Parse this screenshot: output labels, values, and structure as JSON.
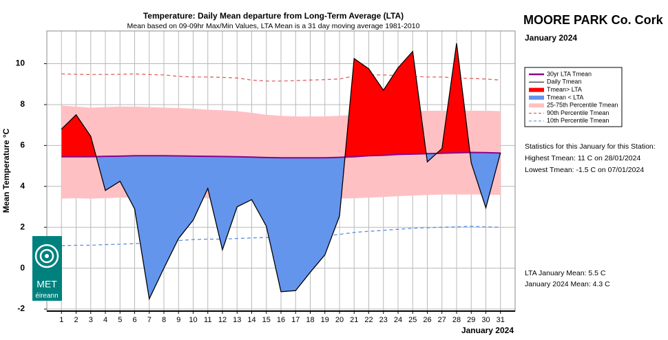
{
  "chart_data": {
    "type": "line",
    "title": "Temperature: Daily Mean departure from Long-Term Average (LTA)",
    "subtitle": "Mean based on 09-09hr Max/Min Values, LTA Mean is a 31 day moving average 1981-2010",
    "y_label": "Mean Temperature °C",
    "x_label": "January 2024",
    "x": [
      1,
      2,
      3,
      4,
      5,
      6,
      7,
      8,
      9,
      10,
      11,
      12,
      13,
      14,
      15,
      16,
      17,
      18,
      19,
      20,
      21,
      22,
      23,
      24,
      25,
      26,
      27,
      28,
      29,
      30,
      31
    ],
    "xlim": [
      0,
      32
    ],
    "xticks": [
      1,
      2,
      3,
      4,
      5,
      6,
      7,
      8,
      9,
      10,
      11,
      12,
      13,
      14,
      15,
      16,
      17,
      18,
      19,
      20,
      21,
      22,
      23,
      24,
      25,
      26,
      27,
      28,
      29,
      30,
      31
    ],
    "ylim": [
      -2.1,
      11.6
    ],
    "yticks": [
      -2,
      0,
      2,
      4,
      6,
      8,
      10
    ],
    "grid": true,
    "series": [
      {
        "name": "30yr LTA Tmean",
        "color": "#8b008b",
        "values": [
          5.45,
          5.45,
          5.45,
          5.47,
          5.48,
          5.5,
          5.5,
          5.5,
          5.49,
          5.48,
          5.47,
          5.46,
          5.45,
          5.43,
          5.41,
          5.4,
          5.4,
          5.4,
          5.4,
          5.42,
          5.45,
          5.5,
          5.52,
          5.56,
          5.58,
          5.6,
          5.62,
          5.64,
          5.66,
          5.65,
          5.63
        ]
      },
      {
        "name": "Daily Tmean",
        "color": "#000000",
        "values": [
          6.8,
          7.5,
          6.45,
          3.8,
          4.25,
          2.9,
          -1.5,
          0.0,
          1.45,
          2.35,
          3.9,
          0.9,
          3.0,
          3.35,
          2.05,
          -1.15,
          -1.1,
          -0.2,
          0.65,
          2.55,
          10.25,
          9.75,
          8.7,
          9.8,
          10.6,
          5.2,
          5.85,
          11.0,
          5.15,
          2.95,
          5.65
        ]
      },
      {
        "name": "90th Percentile Tmean",
        "color": "#e06060",
        "dashed": true,
        "values": [
          9.5,
          9.48,
          9.47,
          9.47,
          9.48,
          9.5,
          9.47,
          9.45,
          9.38,
          9.35,
          9.35,
          9.33,
          9.3,
          9.2,
          9.15,
          9.15,
          9.17,
          9.2,
          9.22,
          9.25,
          9.4,
          9.45,
          9.45,
          9.42,
          9.38,
          9.35,
          9.35,
          9.3,
          9.28,
          9.25,
          9.2
        ]
      },
      {
        "name": "10th Percentile Tmean",
        "color": "#5b8fe0",
        "dashed": true,
        "values": [
          1.1,
          1.12,
          1.12,
          1.15,
          1.17,
          1.2,
          1.25,
          1.3,
          1.35,
          1.4,
          1.42,
          1.42,
          1.45,
          1.48,
          1.5,
          1.5,
          1.52,
          1.55,
          1.58,
          1.65,
          1.75,
          1.8,
          1.85,
          1.9,
          1.95,
          1.98,
          2.0,
          2.02,
          2.05,
          2.02,
          2.0
        ]
      }
    ],
    "band": {
      "name": "25-75th Percentile Tmean",
      "color": "#ffc0c4",
      "lower": [
        3.4,
        3.42,
        3.4,
        3.42,
        3.45,
        3.45,
        3.48,
        3.5,
        3.48,
        3.45,
        3.42,
        3.42,
        3.45,
        3.45,
        3.45,
        3.42,
        3.4,
        3.38,
        3.38,
        3.4,
        3.42,
        3.45,
        3.48,
        3.52,
        3.55,
        3.58,
        3.6,
        3.6,
        3.6,
        3.6,
        3.58
      ],
      "upper": [
        7.95,
        7.9,
        7.85,
        7.88,
        7.9,
        7.9,
        7.88,
        7.85,
        7.83,
        7.8,
        7.75,
        7.72,
        7.68,
        7.6,
        7.5,
        7.45,
        7.42,
        7.42,
        7.42,
        7.45,
        7.5,
        7.55,
        7.6,
        7.65,
        7.68,
        7.7,
        7.7,
        7.7,
        7.7,
        7.7,
        7.68
      ]
    },
    "fills": [
      {
        "name": "Tmean> LTA",
        "color": "#ff0000"
      },
      {
        "name": "Tmean < LTA",
        "color": "#6495ed"
      }
    ],
    "station": "MOORE PARK Co. Cork",
    "period": "January 2024",
    "stats": [
      "Statistics for this January for this Station:",
      "Highest Tmean: 11 C on 28/01/2024",
      "Lowest Tmean: -1.5 C on 07/01/2024"
    ],
    "summary": [
      "LTA January Mean: 5.5 C",
      "January 2024 Mean: 4.3 C"
    ]
  },
  "logo": {
    "line1": "MET",
    "line2": "éireann"
  }
}
